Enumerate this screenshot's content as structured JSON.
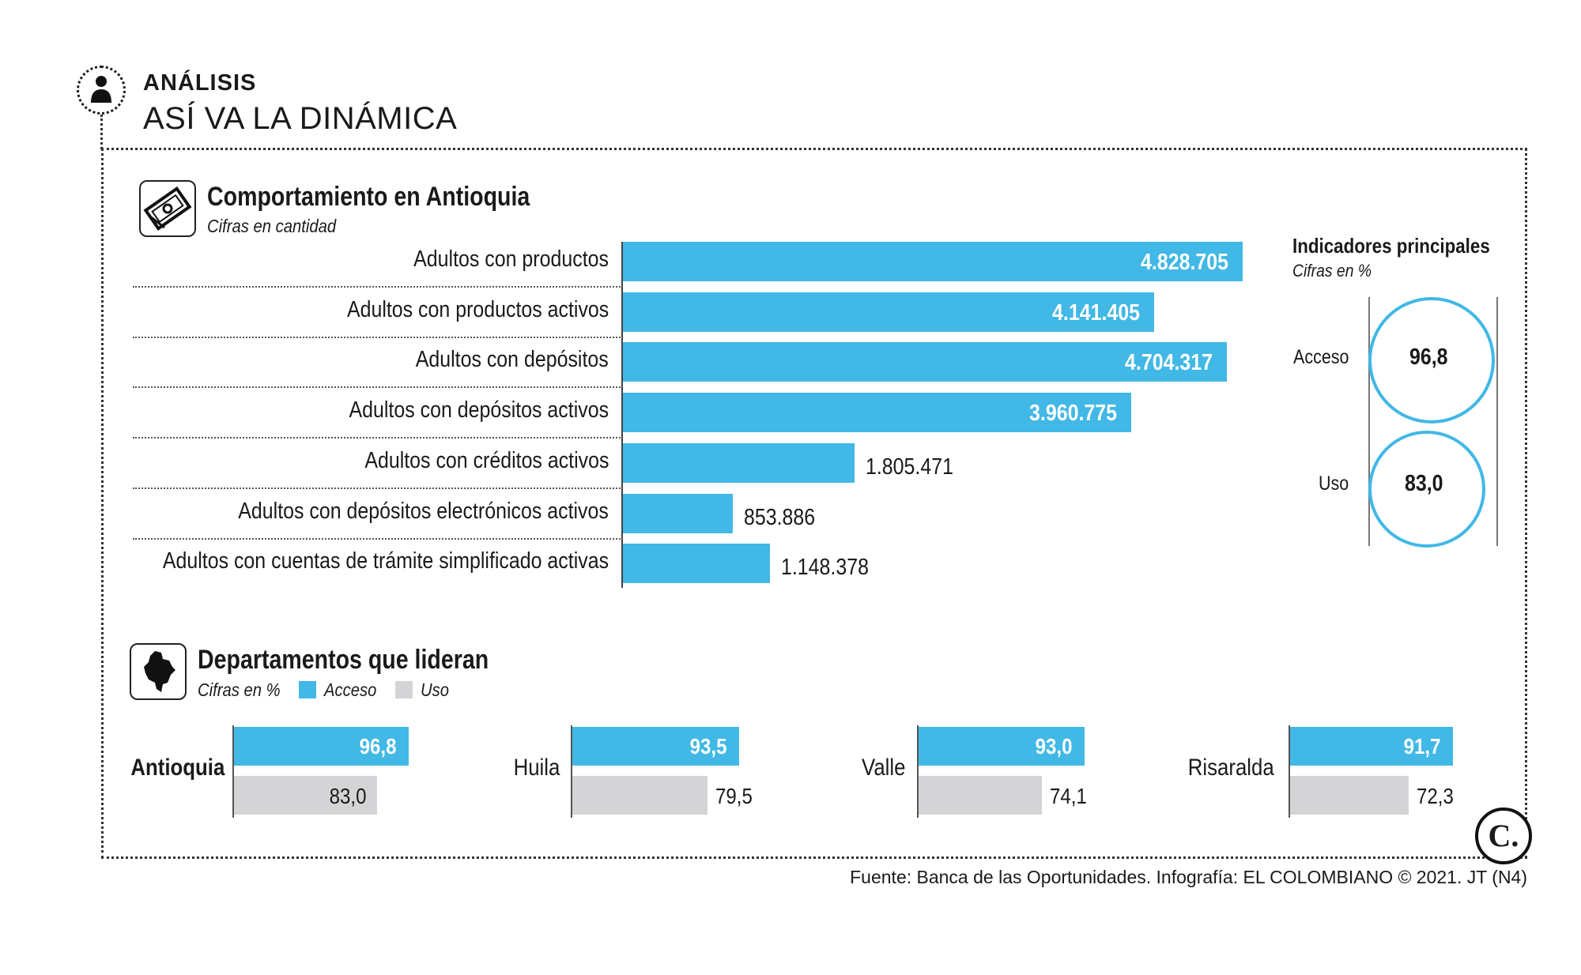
{
  "header": {
    "kicker": "ANÁLISIS",
    "headline": "ASÍ VA LA DINÁMICA"
  },
  "colors": {
    "access": "#41b8e5",
    "use": "#d4d4d6",
    "text": "#1a1a1a"
  },
  "section1": {
    "title": "Comportamiento en Antioquia",
    "subtitle": "Cifras en cantidad",
    "icon": "money-bill-icon"
  },
  "indicators": {
    "title": "Indicadores principales",
    "subtitle": "Cifras en %",
    "items": [
      {
        "label": "Acceso",
        "value": "96,8"
      },
      {
        "label": "Uso",
        "value": "83,0"
      }
    ]
  },
  "section2": {
    "title": "Departamentos que lideran",
    "subtitle": "Cifras en %",
    "legend_access": "Acceso",
    "legend_use": "Uso",
    "icon": "colombia-map-icon"
  },
  "chart_data": [
    {
      "type": "bar",
      "orientation": "horizontal",
      "title": "Comportamiento en Antioquia",
      "subtitle": "Cifras en cantidad",
      "categories": [
        "Adultos con productos",
        "Adultos con productos activos",
        "Adultos con depósitos",
        "Adultos con depósitos activos",
        "Adultos con créditos activos",
        "Adultos con depósitos electrónicos activos",
        "Adultos con cuentas de trámite simplificado activas"
      ],
      "values": [
        4828705,
        4141405,
        4704317,
        3960775,
        1805471,
        853886,
        1148378
      ],
      "labels": [
        "4.828.705",
        "4.141.405",
        "4.704.317",
        "3.960.775",
        "1.805.471",
        "853.886",
        "1.148.378"
      ],
      "xlim": [
        0,
        4828705
      ],
      "grid": false
    },
    {
      "type": "bar",
      "orientation": "horizontal",
      "title": "Departamentos que lideran",
      "subtitle": "Cifras en %",
      "categories": [
        "Antioquia",
        "Huila",
        "Valle",
        "Risaralda"
      ],
      "series": [
        {
          "name": "Acceso",
          "values": [
            96.8,
            93.5,
            93.0,
            91.7
          ],
          "labels": [
            "96,8",
            "93,5",
            "93,0",
            "91,7"
          ]
        },
        {
          "name": "Uso",
          "values": [
            83.0,
            79.5,
            74.1,
            72.3
          ],
          "labels": [
            "83,0",
            "79,5",
            "74,1",
            "72,3"
          ]
        }
      ],
      "legend": "top-left",
      "grid": false
    }
  ],
  "source": "Fuente: Banca de las Oportunidades. Infografía: EL COLOMBIANO © 2021. JT (N4)",
  "logo": {
    "text": "C.",
    "icon": "el-colombiano-logo-icon"
  }
}
